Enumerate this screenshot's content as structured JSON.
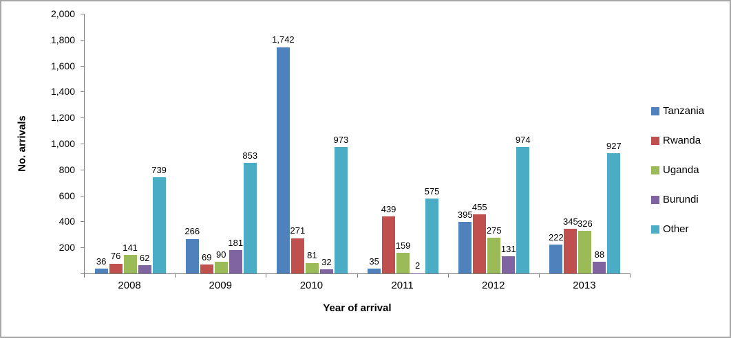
{
  "chart_data": {
    "type": "bar",
    "title": "",
    "xlabel": "Year of arrival",
    "ylabel": "No. arrivals",
    "categories": [
      "2008",
      "2009",
      "2010",
      "2011",
      "2012",
      "2013"
    ],
    "series": [
      {
        "name": "Tanzania",
        "color": "#4F81BD",
        "values": [
          36,
          266,
          1742,
          35,
          395,
          222
        ]
      },
      {
        "name": "Rwanda",
        "color": "#C0504D",
        "values": [
          76,
          69,
          271,
          439,
          455,
          345
        ]
      },
      {
        "name": "Uganda",
        "color": "#9BBB59",
        "values": [
          141,
          90,
          81,
          159,
          275,
          326
        ]
      },
      {
        "name": "Burundi",
        "color": "#8064A2",
        "values": [
          62,
          181,
          32,
          2,
          131,
          88
        ]
      },
      {
        "name": "Other",
        "color": "#4BACC6",
        "values": [
          739,
          853,
          973,
          575,
          974,
          927
        ]
      }
    ],
    "ylim": [
      0,
      2000
    ],
    "ytick_step": 200,
    "y_tick_labels": [
      "2,000",
      "1,800",
      "1,600",
      "1,400",
      "1,200",
      "1,000",
      "800",
      "600",
      "400",
      "200"
    ],
    "grid": false,
    "legend_position": "right",
    "data_labels": true,
    "axis_color": "#808080"
  }
}
